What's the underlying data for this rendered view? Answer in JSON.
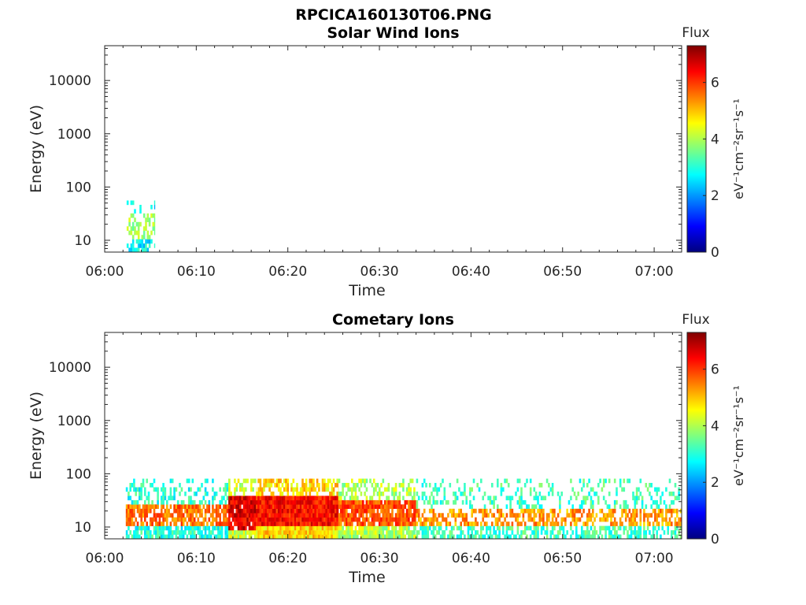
{
  "figure": {
    "title": "RPCICA160130T06.PNG"
  },
  "colormap": {
    "type": "jet",
    "stops": [
      "#00007f",
      "#0000ff",
      "#007fff",
      "#00ffff",
      "#7fff7f",
      "#ffff00",
      "#ff7f00",
      "#ff0000",
      "#7f0000"
    ]
  },
  "chart_data": [
    {
      "type": "heatmap",
      "title": "Solar Wind Ions",
      "xlabel": "Time",
      "ylabel": "Energy (eV)",
      "x_ticks": [
        "06:00",
        "06:10",
        "06:20",
        "06:30",
        "06:40",
        "06:50",
        "07:00"
      ],
      "x_range_min": [
        0,
        63
      ],
      "y_scale": "log",
      "y_ticks": [
        "10",
        "100",
        "1000",
        "10000"
      ],
      "y_range": [
        6,
        45000
      ],
      "colorbar": {
        "label": "Flux",
        "unit": "eV⁻¹cm⁻²sr⁻¹s⁻¹",
        "ticks": [
          "0",
          "2",
          "4",
          "6"
        ],
        "range": [
          0,
          7.3
        ]
      },
      "regions": [
        {
          "t_min": [
            2.4,
            5.5
          ],
          "e_lo": 6,
          "e_hi": 55,
          "core_e": [
            10,
            30
          ],
          "flux_core": 3.9,
          "flux_edge": 2.7,
          "density": 0.5
        }
      ],
      "grid": false
    },
    {
      "type": "heatmap",
      "title": "Cometary Ions",
      "xlabel": "Time",
      "ylabel": "Energy (eV)",
      "x_ticks": [
        "06:00",
        "06:10",
        "06:20",
        "06:30",
        "06:40",
        "06:50",
        "07:00"
      ],
      "x_range_min": [
        0,
        63
      ],
      "y_scale": "log",
      "y_ticks": [
        "10",
        "100",
        "1000",
        "10000"
      ],
      "y_range": [
        6,
        45000
      ],
      "colorbar": {
        "label": "Flux",
        "unit": "eV⁻¹cm⁻²sr⁻¹s⁻¹",
        "ticks": [
          "0",
          "2",
          "4",
          "6"
        ],
        "range": [
          0,
          7.3
        ]
      },
      "regions": [
        {
          "t_min": [
            2.3,
            13.5
          ],
          "e_lo": 6,
          "e_hi": 80,
          "core_e": [
            10,
            25
          ],
          "flux_core": 5.6,
          "flux_edge": 3.0,
          "density": 0.75
        },
        {
          "t_min": [
            13.5,
            16.5
          ],
          "e_lo": 6,
          "e_hi": 80,
          "core_e": [
            8,
            40
          ],
          "flux_core": 6.6,
          "flux_edge": 4.2,
          "density": 0.9
        },
        {
          "t_min": [
            16.5,
            25.5
          ],
          "e_lo": 6,
          "e_hi": 80,
          "core_e": [
            10,
            40
          ],
          "flux_core": 6.3,
          "flux_edge": 4.8,
          "density": 1.0
        },
        {
          "t_min": [
            25.5,
            34
          ],
          "e_lo": 6,
          "e_hi": 80,
          "core_e": [
            10,
            30
          ],
          "flux_core": 5.8,
          "flux_edge": 4.0,
          "density": 0.9
        },
        {
          "t_min": [
            34,
            63
          ],
          "e_lo": 6,
          "e_hi": 80,
          "core_e": [
            11,
            22
          ],
          "flux_core": 5.3,
          "flux_edge": 3.2,
          "density": 0.55
        }
      ],
      "grid": false
    }
  ]
}
